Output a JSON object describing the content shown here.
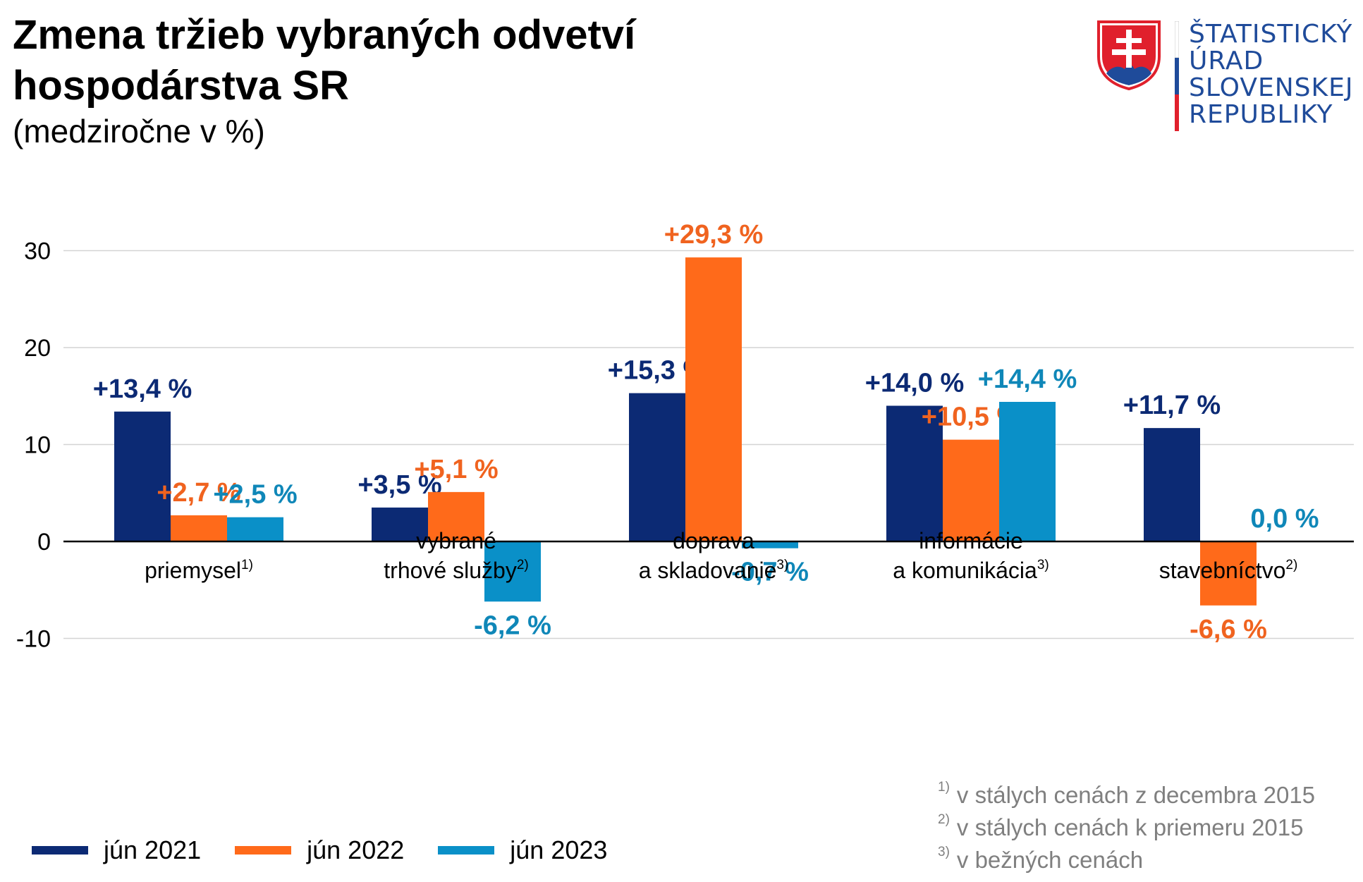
{
  "header": {
    "title": "Zmena tržieb vybraných odvetví hospodárstva SR",
    "subtitle": "(medziročne v %)"
  },
  "logo": {
    "lines": [
      "ŠTATISTICKÝ",
      "ÚRAD",
      "SLOVENSKEJ",
      "REPUBLIKY"
    ],
    "icon": "slovak-coat-of-arms-icon"
  },
  "colors": {
    "jun2021": "#0c2a74",
    "jun2022": "#ff6a1a",
    "jun2023": "#0a90c8",
    "label2021": "#0c2a74",
    "label2022": "#f0631f",
    "label2023": "#0f87b8",
    "logo_blue": "#1f4b9a",
    "logo_red": "#e0202c"
  },
  "chart_data": {
    "type": "bar",
    "title": "Zmena tržieb vybraných odvetví hospodárstva SR",
    "subtitle": "(medziročne v %)",
    "categories": [
      {
        "lines": [
          "priemysel"
        ],
        "sup": "1)"
      },
      {
        "lines": [
          "vybrané",
          "trhové služby"
        ],
        "sup": "2)"
      },
      {
        "lines": [
          "doprava",
          "a skladovanie"
        ],
        "sup": "3)"
      },
      {
        "lines": [
          "informácie",
          "a komunikácia"
        ],
        "sup": "3)"
      },
      {
        "lines": [
          "stavebníctvo"
        ],
        "sup": "2)"
      }
    ],
    "series": [
      {
        "name": "jún 2021",
        "values": [
          13.4,
          3.5,
          15.3,
          14.0,
          11.7
        ],
        "labels": [
          "+13,4 %",
          "+3,5 %",
          "+15,3 %",
          "+14,0 %",
          "+11,7 %"
        ]
      },
      {
        "name": "jún 2022",
        "values": [
          2.7,
          5.1,
          29.3,
          10.5,
          -6.6
        ],
        "labels": [
          "+2,7 %",
          "+5,1 %",
          "+29,3 %",
          "+10,5 %",
          "-6,6 %"
        ]
      },
      {
        "name": "jún 2023",
        "values": [
          2.5,
          -6.2,
          -0.7,
          14.4,
          0.0
        ],
        "labels": [
          "+2,5 %",
          "-6,2 %",
          "-0,7 %",
          "+14,4 %",
          "0,0 %"
        ]
      }
    ],
    "ylim": [
      -10,
      30
    ],
    "yticks": [
      30,
      20,
      10,
      0,
      -10
    ],
    "ytick_labels": [
      "30",
      "20",
      "10",
      "0",
      "-10"
    ],
    "grid": true,
    "legend_placement": "bottom-left"
  },
  "footnotes": [
    {
      "mark": "1)",
      "text": "v stálych cenách z decembra 2015"
    },
    {
      "mark": "2)",
      "text": "v stálych cenách k priemeru 2015"
    },
    {
      "mark": "3)",
      "text": "v bežných cenách"
    }
  ]
}
